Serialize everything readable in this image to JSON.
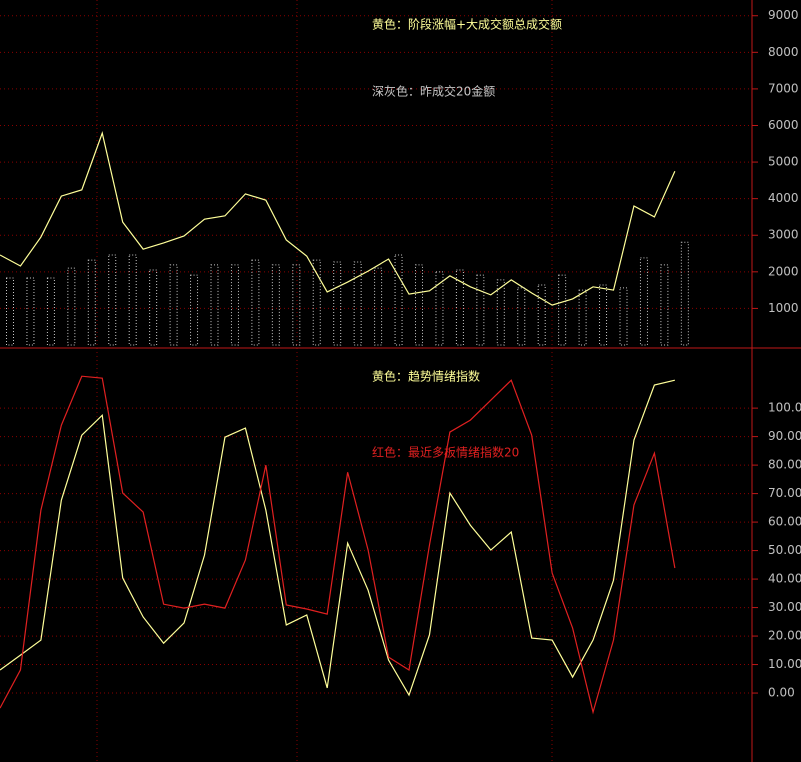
{
  "chart_data": [
    {
      "type": "line",
      "categories": [
        null,
        null,
        null,
        null,
        null,
        null,
        null,
        null,
        null,
        null,
        null,
        null,
        null,
        null,
        null,
        null,
        null,
        null,
        null,
        null,
        null,
        null,
        null,
        null,
        null,
        null,
        null,
        null,
        null,
        null,
        null,
        null,
        null,
        null
      ],
      "series": [
        {
          "name": "黄色：阶段涨幅+大成交额总成交额",
          "color": "#ffff99",
          "type": "line",
          "values": [
            2460,
            2160,
            2950,
            4070,
            4240,
            5790,
            3360,
            2620,
            2790,
            2980,
            3440,
            3530,
            4130,
            3960,
            2870,
            2430,
            1450,
            1720,
            2020,
            2350,
            1390,
            1480,
            1890,
            1590,
            1370,
            1780,
            1420,
            1090,
            1260,
            1590,
            1500,
            3800,
            3500,
            4750
          ]
        },
        {
          "name": "深灰色：昨成交20金额",
          "color": "#c8c8c8",
          "type": "bar",
          "values": [
            1830,
            1830,
            1830,
            2100,
            2320,
            2460,
            2460,
            2050,
            2190,
            1910,
            2190,
            2190,
            2320,
            2190,
            2190,
            2320,
            2270,
            2270,
            2100,
            2460,
            2190,
            2000,
            2050,
            1910,
            1780,
            1560,
            1640,
            1910,
            1500,
            1640,
            1560,
            2380,
            2190,
            2810
          ]
        }
      ],
      "ylim": [
        0,
        9430
      ],
      "yticks": [
        1000,
        2000,
        3000,
        4000,
        5000,
        6000,
        7000,
        8000,
        9000
      ],
      "grid": true
    },
    {
      "type": "line",
      "categories": [
        null,
        null,
        null,
        null,
        null,
        null,
        null,
        null,
        null,
        null,
        null,
        null,
        null,
        null,
        null,
        null,
        null,
        null,
        null,
        null,
        null,
        null,
        null,
        null,
        null,
        null,
        null,
        null,
        null,
        null,
        null,
        null,
        null,
        null
      ],
      "series": [
        {
          "name": "黄色：趋势情绪指数",
          "color": "#ffff99",
          "type": "line",
          "values": [
            8.1,
            13.3,
            18.6,
            67.7,
            90.5,
            97.5,
            40.4,
            26.7,
            17.5,
            24.6,
            48.4,
            89.8,
            93,
            64.2,
            23.9,
            27.4,
            1.8,
            52.6,
            36.1,
            11.6,
            -0.7,
            20.4,
            70.2,
            58.9,
            50.2,
            56.5,
            19.3,
            18.6,
            5.6,
            18.6,
            39.6,
            88.8,
            108.1,
            109.8
          ]
        },
        {
          "name": "红色：最近多板情绪指数20",
          "color": "#e02020",
          "type": "line",
          "values": [
            -5.3,
            8.1,
            64.2,
            94,
            111.2,
            110.5,
            70.2,
            63.5,
            31.2,
            29.8,
            31.2,
            29.8,
            46.7,
            80,
            30.9,
            29.5,
            27.7,
            77.5,
            50.2,
            12.6,
            8.1,
            51.9,
            91.6,
            95.8,
            102.8,
            109.8,
            90.5,
            42.1,
            22.8,
            -6.7,
            18.6,
            66,
            84.2,
            43.9
          ]
        }
      ],
      "ylim": [
        -24.2,
        120.4
      ],
      "yticks": [
        {
          "value": 0,
          "label": "0.00"
        },
        {
          "value": 10,
          "label": "10.00"
        },
        {
          "value": 20,
          "label": "20.00"
        },
        {
          "value": 30,
          "label": "30.00"
        },
        {
          "value": 40,
          "label": "40.00"
        },
        {
          "value": 50,
          "label": "50.00"
        },
        {
          "value": 60,
          "label": "60.00"
        },
        {
          "value": 70,
          "label": "70.00"
        },
        {
          "value": 80,
          "label": "80.00"
        },
        {
          "value": 90,
          "label": "90.00"
        },
        {
          "value": 100,
          "label": "100.0"
        }
      ],
      "grid": true
    }
  ]
}
